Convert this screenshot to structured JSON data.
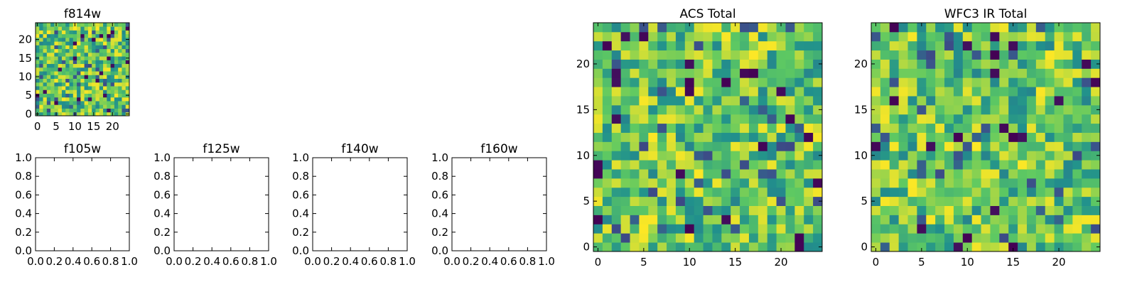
{
  "chart_data": [
    {
      "type": "heatmap",
      "title": "f814w",
      "xlabel": "",
      "ylabel": "",
      "xlim": [
        -0.5,
        24.5
      ],
      "ylim": [
        -0.5,
        24.5
      ],
      "xticks": [
        0,
        5,
        10,
        15,
        20
      ],
      "yticks": [
        0,
        5,
        10,
        15,
        20
      ],
      "xtick_labels": [
        "0",
        "5",
        "10",
        "15",
        "20"
      ],
      "ytick_labels": [
        "0",
        "5",
        "10",
        "15",
        "20"
      ],
      "colormap": "viridis",
      "grid": false,
      "rows": 25,
      "cols": 25,
      "seed": 814,
      "value_range": [
        0,
        1
      ]
    },
    {
      "type": "empty",
      "title": "f105w",
      "xlim": [
        0,
        1
      ],
      "ylim": [
        0,
        1
      ],
      "xtick_labels": [
        "0.0",
        "0.2",
        "0.4",
        "0.6",
        "0.8",
        "1.0"
      ],
      "ytick_labels": [
        "0.0",
        "0.2",
        "0.4",
        "0.6",
        "0.8",
        "1.0"
      ]
    },
    {
      "type": "empty",
      "title": "f125w",
      "xlim": [
        0,
        1
      ],
      "ylim": [
        0,
        1
      ],
      "xtick_labels": [
        "0.0",
        "0.2",
        "0.4",
        "0.6",
        "0.8",
        "1.0"
      ],
      "ytick_labels": [
        "0.0",
        "0.2",
        "0.4",
        "0.6",
        "0.8",
        "1.0"
      ]
    },
    {
      "type": "empty",
      "title": "f140w",
      "xlim": [
        0,
        1
      ],
      "ylim": [
        0,
        1
      ],
      "xtick_labels": [
        "0.0",
        "0.2",
        "0.4",
        "0.6",
        "0.8",
        "1.0"
      ],
      "ytick_labels": [
        "0.0",
        "0.2",
        "0.4",
        "0.6",
        "0.8",
        "1.0"
      ]
    },
    {
      "type": "empty",
      "title": "f160w",
      "xlim": [
        0,
        1
      ],
      "ylim": [
        0,
        1
      ],
      "xtick_labels": [
        "0.0",
        "0.2",
        "0.4",
        "0.6",
        "0.8",
        "1.0"
      ],
      "ytick_labels": [
        "0.0",
        "0.2",
        "0.4",
        "0.6",
        "0.8",
        "1.0"
      ]
    },
    {
      "type": "heatmap",
      "title": "ACS Total",
      "xlim": [
        -0.5,
        24.5
      ],
      "ylim": [
        -0.5,
        24.5
      ],
      "xticks": [
        0,
        5,
        10,
        15,
        20
      ],
      "yticks": [
        0,
        5,
        10,
        15,
        20
      ],
      "xtick_labels": [
        "0",
        "5",
        "10",
        "15",
        "20"
      ],
      "ytick_labels": [
        "0",
        "5",
        "10",
        "15",
        "20"
      ],
      "colormap": "viridis",
      "grid": false,
      "rows": 25,
      "cols": 25,
      "seed": 1101,
      "value_range": [
        0,
        1
      ]
    },
    {
      "type": "heatmap",
      "title": "WFC3 IR Total",
      "xlim": [
        -0.5,
        24.5
      ],
      "ylim": [
        -0.5,
        24.5
      ],
      "xticks": [
        0,
        5,
        10,
        15,
        20
      ],
      "yticks": [
        0,
        5,
        10,
        15,
        20
      ],
      "xtick_labels": [
        "0",
        "5",
        "10",
        "15",
        "20"
      ],
      "ytick_labels": [
        "0",
        "5",
        "10",
        "15",
        "20"
      ],
      "colormap": "viridis",
      "grid": false,
      "rows": 25,
      "cols": 25,
      "seed": 3301,
      "value_range": [
        0,
        1
      ]
    }
  ],
  "colors": {
    "viridis_stops": [
      "#440154",
      "#3b528b",
      "#21918c",
      "#5ec962",
      "#fde725"
    ],
    "axes": "#000000",
    "background": "#ffffff"
  }
}
